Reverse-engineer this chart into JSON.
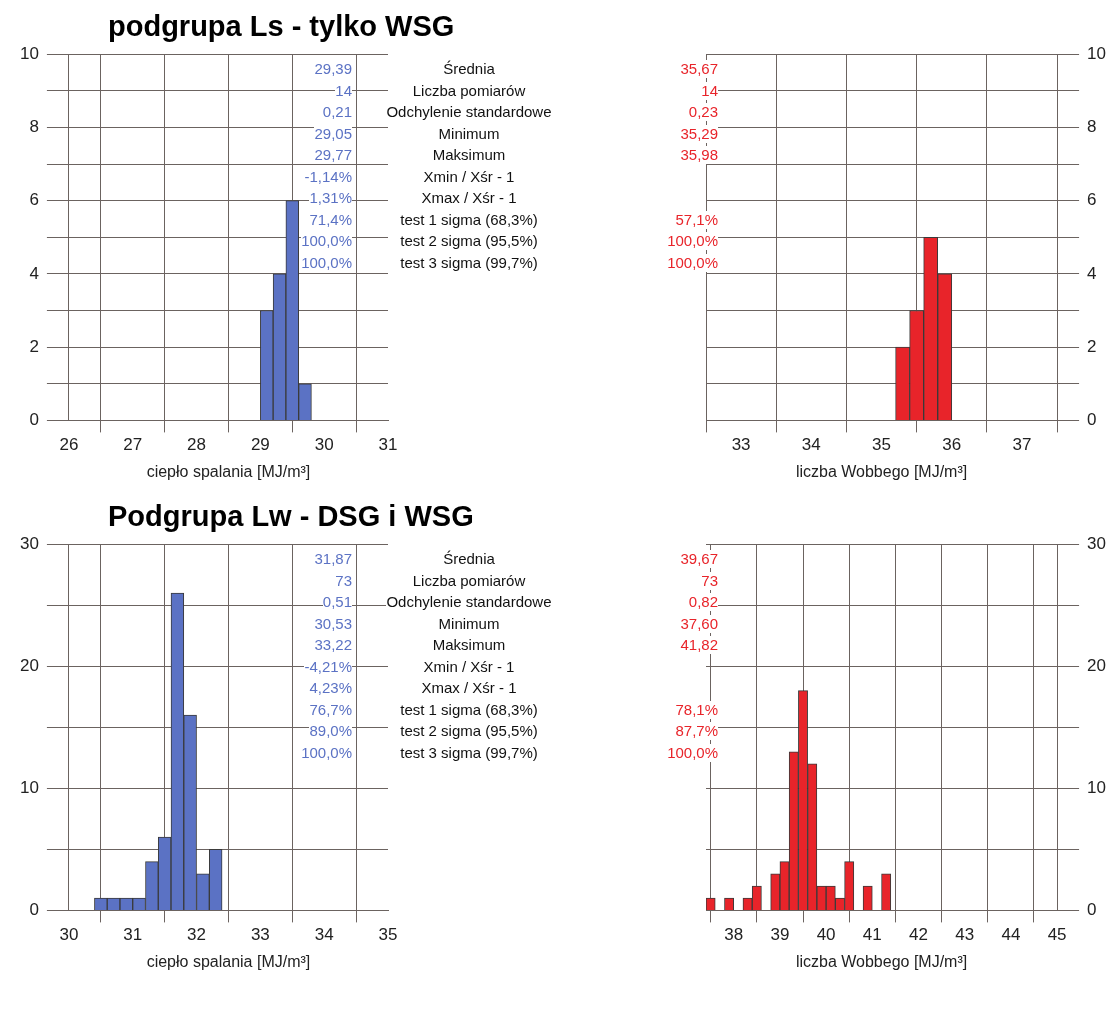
{
  "chart_data": [
    {
      "type": "histogram",
      "title": "podgrupa Ls - tylko WSG",
      "xlabel": "ciepło spalania [MJ/m³]",
      "bins": [
        29.0,
        29.2,
        29.4,
        29.6,
        29.8
      ],
      "values": [
        3,
        4,
        6,
        1
      ],
      "color": "#5b72c4",
      "xlim": [
        26,
        31
      ],
      "xticks": [
        26,
        27,
        28,
        29,
        30,
        31
      ],
      "ylim": [
        0,
        10
      ],
      "yticks": [
        0,
        {
          "value": 1,
          "label": null
        },
        2,
        {
          "value": 3,
          "label": null
        },
        4,
        {
          "value": 5,
          "label": null
        },
        6,
        {
          "value": 7,
          "label": null
        },
        8,
        {
          "value": 9,
          "label": null
        },
        10
      ],
      "grid": true,
      "annotations": [
        "29,39",
        "14",
        "0,21",
        "29,05",
        "29,77",
        "-1,14%",
        "1,31%",
        "71,4%",
        "100,0%",
        "100,0%",
        "Średnia",
        "Liczba pomiarów",
        "Odchylenie standardowe",
        "Minimum",
        "Maksimum",
        "Xmin / Xśr - 1",
        "Xmax / Xśr - 1",
        "test 1 sigma (68,3%)",
        "test 2 sigma (95,5%)",
        "test 3 sigma (99,7%)"
      ]
    },
    {
      "type": "histogram",
      "xlabel": "liczba Wobbego [MJ/m³]",
      "bins": [
        35.2,
        35.4,
        35.6,
        35.8,
        36.0
      ],
      "values": [
        2,
        3,
        5,
        4
      ],
      "color": "#e8242a",
      "xlim": [
        32.5,
        37.5
      ],
      "xticks": [
        33,
        34,
        35,
        36,
        37
      ],
      "ylim": [
        0,
        10
      ],
      "yticks": [
        0,
        {
          "value": 1,
          "label": null
        },
        2,
        {
          "value": 3,
          "label": null
        },
        4,
        {
          "value": 5,
          "label": null
        },
        6,
        {
          "value": 7,
          "label": null
        },
        8,
        {
          "value": 9,
          "label": null
        },
        10
      ],
      "grid": true,
      "annotations": [
        "35,67",
        "14",
        "0,23",
        "35,29",
        "35,98",
        "57,1%",
        "100,0%",
        "100,0%"
      ]
    },
    {
      "type": "histogram",
      "title": "Podgrupa Lw - DSG i WSG",
      "xlabel": "ciepło spalania [MJ/m³]",
      "bins": [
        30.4,
        30.6,
        30.8,
        31.0,
        31.2,
        31.4,
        31.6,
        31.8,
        32.0,
        32.2,
        32.4
      ],
      "values": [
        1,
        1,
        1,
        1,
        4,
        6,
        26,
        16,
        3,
        5
      ],
      "color": "#5b72c4",
      "xlim": [
        30,
        35
      ],
      "xticks": [
        30,
        31,
        32,
        33,
        34,
        35
      ],
      "ylim": [
        0,
        30
      ],
      "yticks": [
        0,
        {
          "value": 5,
          "label": null
        },
        10,
        {
          "value": 15,
          "label": null
        },
        20,
        {
          "value": 25,
          "label": null
        },
        30
      ],
      "grid": true,
      "annotations": [
        "31,87",
        "73",
        "0,51",
        "30,53",
        "33,22",
        "-4,21%",
        "4,23%",
        "76,7%",
        "89,0%",
        "100,0%",
        "Średnia",
        "Liczba pomiarów",
        "Odchylenie standardowe",
        "Minimum",
        "Maksimum",
        "Xmin / Xśr - 1",
        "Xmax / Xśr - 1",
        "test 1 sigma (68,3%)",
        "test 2 sigma (95,5%)",
        "test 3 sigma (99,7%)"
      ]
    },
    {
      "type": "histogram",
      "xlabel": "liczba Wobbego [MJ/m³]",
      "bins": [
        37.4,
        37.6,
        37.8,
        38.0,
        38.2,
        38.4,
        38.6,
        38.8,
        39.0,
        39.2,
        39.4,
        39.6,
        39.8,
        40.0,
        40.2,
        40.4,
        40.6,
        40.8,
        41.0,
        41.2,
        41.4
      ],
      "values": [
        1,
        0,
        1,
        0,
        1,
        2,
        0,
        3,
        4,
        13,
        18,
        12,
        2,
        2,
        1,
        4,
        0,
        2,
        0,
        3
      ],
      "color": "#e8242a",
      "xlim": [
        37.4,
        45
      ],
      "xticks": [
        38,
        39,
        40,
        41,
        42,
        43,
        44,
        45
      ],
      "ylim": [
        0,
        30
      ],
      "yticks": [
        0,
        {
          "value": 5,
          "label": null
        },
        10,
        {
          "value": 15,
          "label": null
        },
        20,
        {
          "value": 25,
          "label": null
        },
        30
      ],
      "grid": true,
      "annotations": [
        "39,67",
        "73",
        "0,82",
        "37,60",
        "41,82",
        "78,1%",
        "87,7%",
        "100,0%"
      ]
    }
  ]
}
